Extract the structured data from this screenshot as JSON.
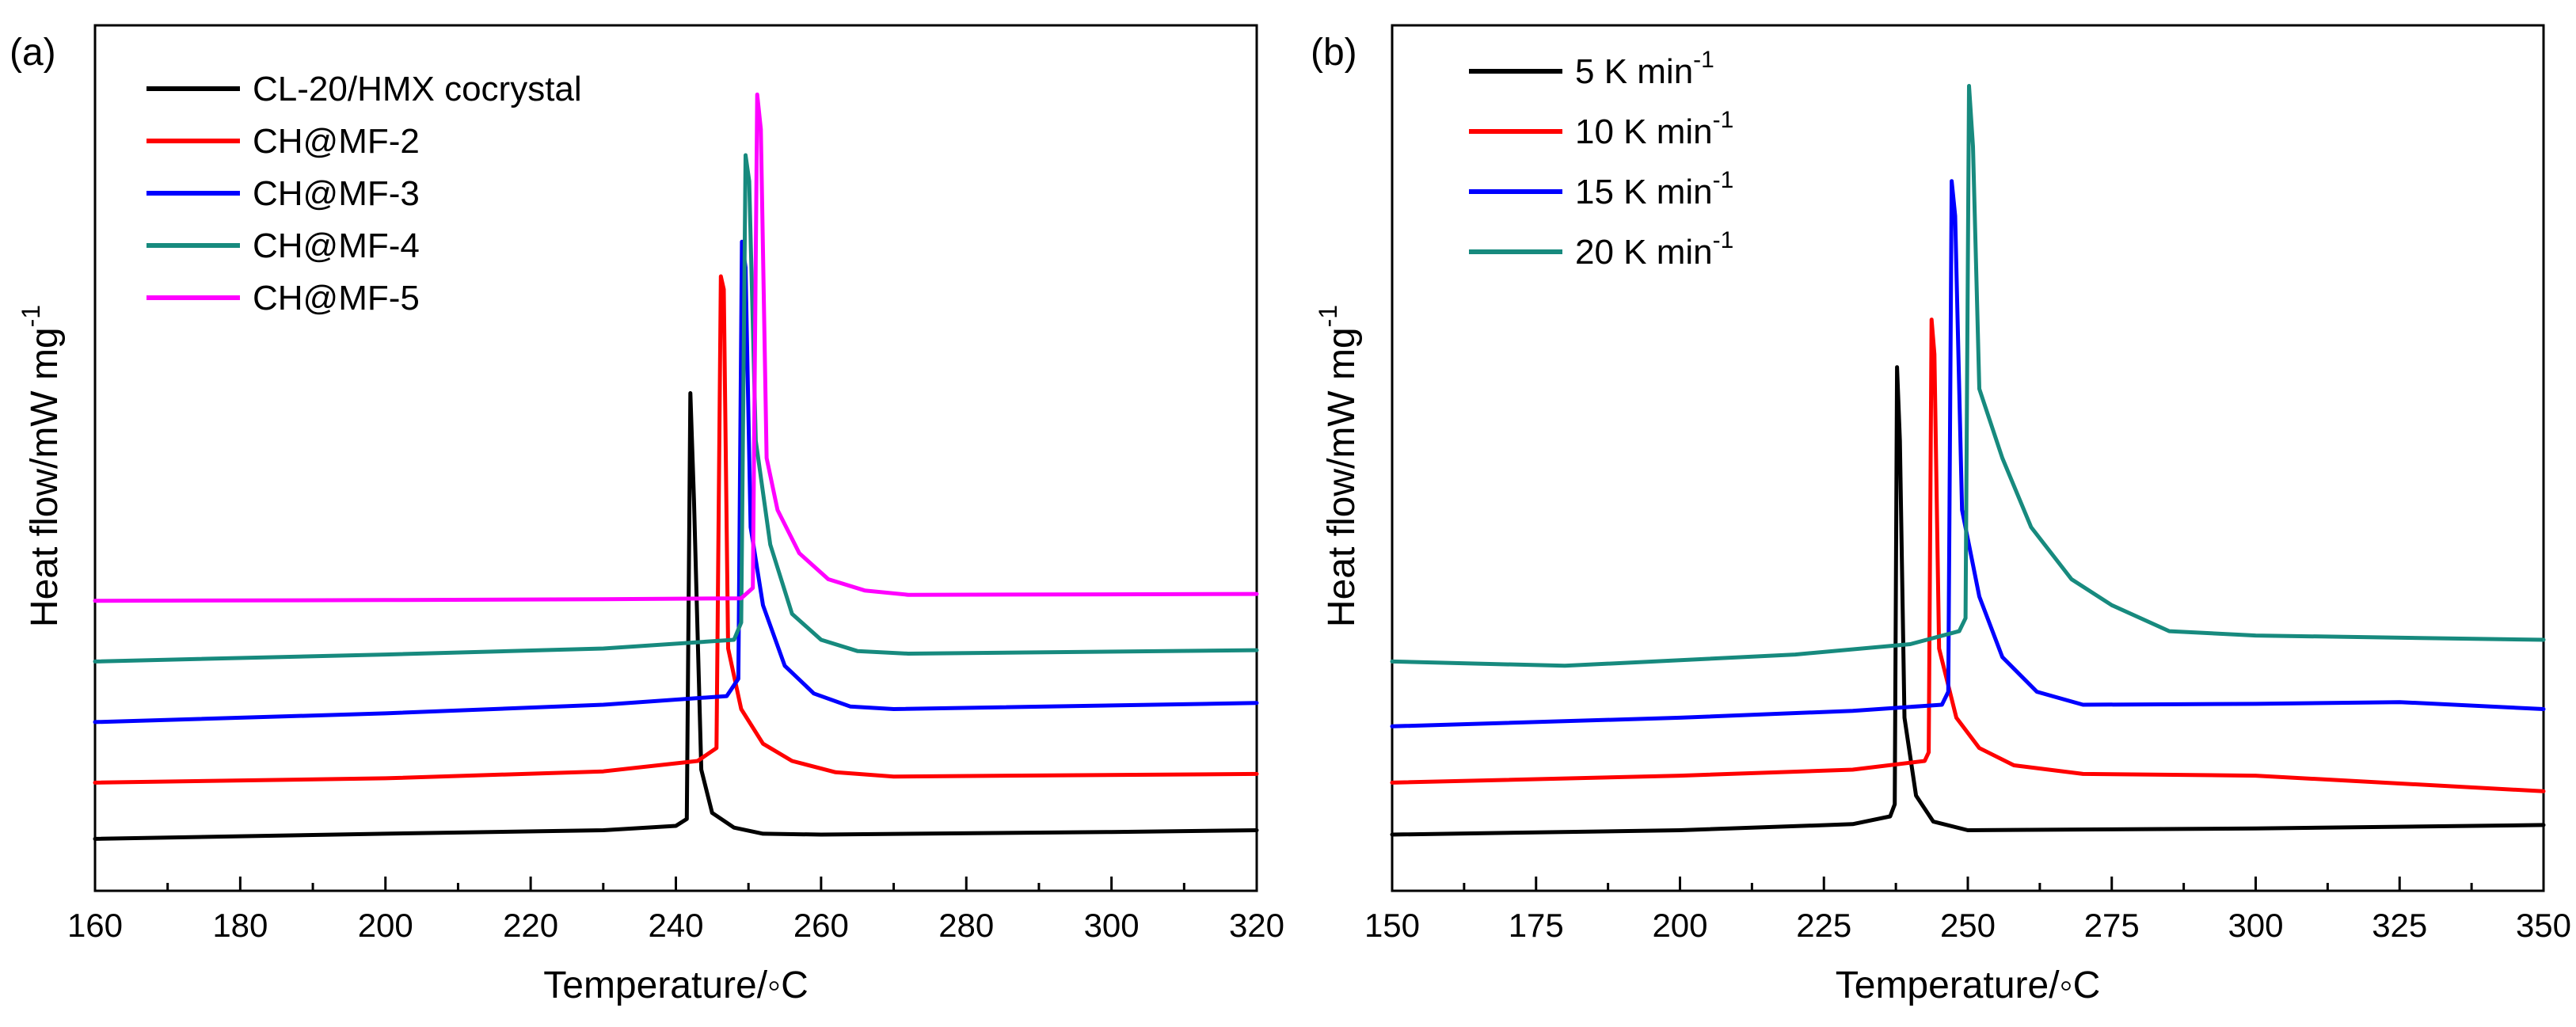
{
  "chart_data": [
    {
      "type": "line",
      "panel_label": "(a)",
      "xlabel": "Temperature/◦C",
      "ylabel": "Heat flow/mW mg",
      "ylabel_superscript": "-1",
      "xlim": [
        160,
        320
      ],
      "ylim": [
        0,
        100
      ],
      "xticks": [
        160,
        180,
        200,
        220,
        240,
        260,
        280,
        300,
        320
      ],
      "y_tick_labels_shown": false,
      "legend_position": "top-left",
      "series": [
        {
          "name": "CL-20/HMX cocrystal",
          "color": "#000000",
          "x": [
            160,
            200,
            230,
            240,
            241.5,
            242.0,
            242.5,
            243.5,
            245,
            248,
            252,
            260,
            300,
            320
          ],
          "y": [
            6.0,
            6.6,
            7.0,
            7.5,
            8.3,
            57.5,
            45.0,
            14.0,
            9.0,
            7.3,
            6.6,
            6.5,
            6.8,
            7.0
          ]
        },
        {
          "name": "CH@MF-2",
          "color": "#ff0000",
          "x": [
            160,
            200,
            230,
            243,
            245.6,
            246.2,
            246.6,
            247.2,
            249,
            252,
            256,
            262,
            270,
            320
          ],
          "y": [
            12.5,
            13.0,
            13.8,
            15.0,
            16.5,
            71.0,
            69.5,
            28.0,
            21.0,
            17.0,
            15.0,
            13.7,
            13.2,
            13.5
          ]
        },
        {
          "name": "CH@MF-3",
          "color": "#0000ff",
          "x": [
            160,
            200,
            230,
            247,
            248.6,
            249.1,
            249.6,
            250.3,
            252,
            255,
            259,
            264,
            270,
            320
          ],
          "y": [
            19.5,
            20.5,
            21.5,
            22.5,
            24.5,
            75.0,
            72.0,
            42.0,
            33.0,
            26.0,
            22.8,
            21.3,
            21.0,
            21.7
          ]
        },
        {
          "name": "CH@MF-4",
          "color": "#178a7e",
          "x": [
            160,
            200,
            230,
            248,
            249.0,
            249.6,
            250.1,
            251.0,
            253,
            256,
            260,
            265,
            272,
            320
          ],
          "y": [
            26.5,
            27.3,
            28.0,
            29.0,
            31.0,
            85.0,
            82.0,
            52.0,
            40.0,
            32.0,
            29.0,
            27.7,
            27.4,
            27.8
          ]
        },
        {
          "name": "CH@MF-5",
          "color": "#ff00ff",
          "x": [
            160,
            200,
            230,
            249,
            250.6,
            251.2,
            251.7,
            252.5,
            254,
            257,
            261,
            266,
            272,
            320
          ],
          "y": [
            33.5,
            33.6,
            33.7,
            33.8,
            35.0,
            92.0,
            88.0,
            50.0,
            44.0,
            39.0,
            36.0,
            34.7,
            34.2,
            34.3
          ]
        }
      ]
    },
    {
      "type": "line",
      "panel_label": "(b)",
      "xlabel": "Temperature/◦C",
      "ylabel": "Heat flow/mW mg",
      "ylabel_superscript": "-1",
      "xlim": [
        150,
        350
      ],
      "ylim": [
        0,
        100
      ],
      "xticks": [
        150,
        175,
        200,
        225,
        250,
        275,
        300,
        325,
        350
      ],
      "y_tick_labels_shown": false,
      "legend_position": "top-left",
      "legend_unit_superscript": "-1",
      "series": [
        {
          "name": "5 K min",
          "color": "#000000",
          "x": [
            150,
            200,
            230,
            236.5,
            237.3,
            237.7,
            238.2,
            239,
            241,
            244,
            250,
            300,
            350
          ],
          "y": [
            6.5,
            7.0,
            7.7,
            8.6,
            10.0,
            60.5,
            52.0,
            20.0,
            11.0,
            8.0,
            7.0,
            7.2,
            7.6
          ]
        },
        {
          "name": "10 K min",
          "color": "#ff0000",
          "x": [
            150,
            200,
            230,
            242.5,
            243.2,
            243.7,
            244.2,
            245,
            248,
            252,
            258,
            270,
            300,
            350
          ],
          "y": [
            12.5,
            13.3,
            14.0,
            15.0,
            16.0,
            66.0,
            62.0,
            28.0,
            20.0,
            16.5,
            14.5,
            13.5,
            13.3,
            11.5
          ]
        },
        {
          "name": "15 K min",
          "color": "#0000ff",
          "x": [
            150,
            200,
            230,
            245.5,
            246.6,
            247.2,
            247.8,
            249,
            252,
            256,
            262,
            270,
            300,
            325,
            350
          ],
          "y": [
            19.0,
            20.0,
            20.8,
            21.5,
            23.0,
            82.0,
            78.0,
            44.0,
            34.0,
            27.0,
            23.0,
            21.5,
            21.6,
            21.8,
            21.0
          ]
        },
        {
          "name": "20 K min",
          "color": "#178a7e",
          "x": [
            150,
            180,
            220,
            240,
            248.5,
            249.6,
            250.2,
            250.9,
            252,
            256,
            261,
            268,
            275,
            285,
            300,
            350
          ],
          "y": [
            26.5,
            26.0,
            27.3,
            28.5,
            30.0,
            31.5,
            93.0,
            86.0,
            58.0,
            50.0,
            42.0,
            36.0,
            33.0,
            30.0,
            29.5,
            29.0
          ]
        }
      ]
    }
  ]
}
